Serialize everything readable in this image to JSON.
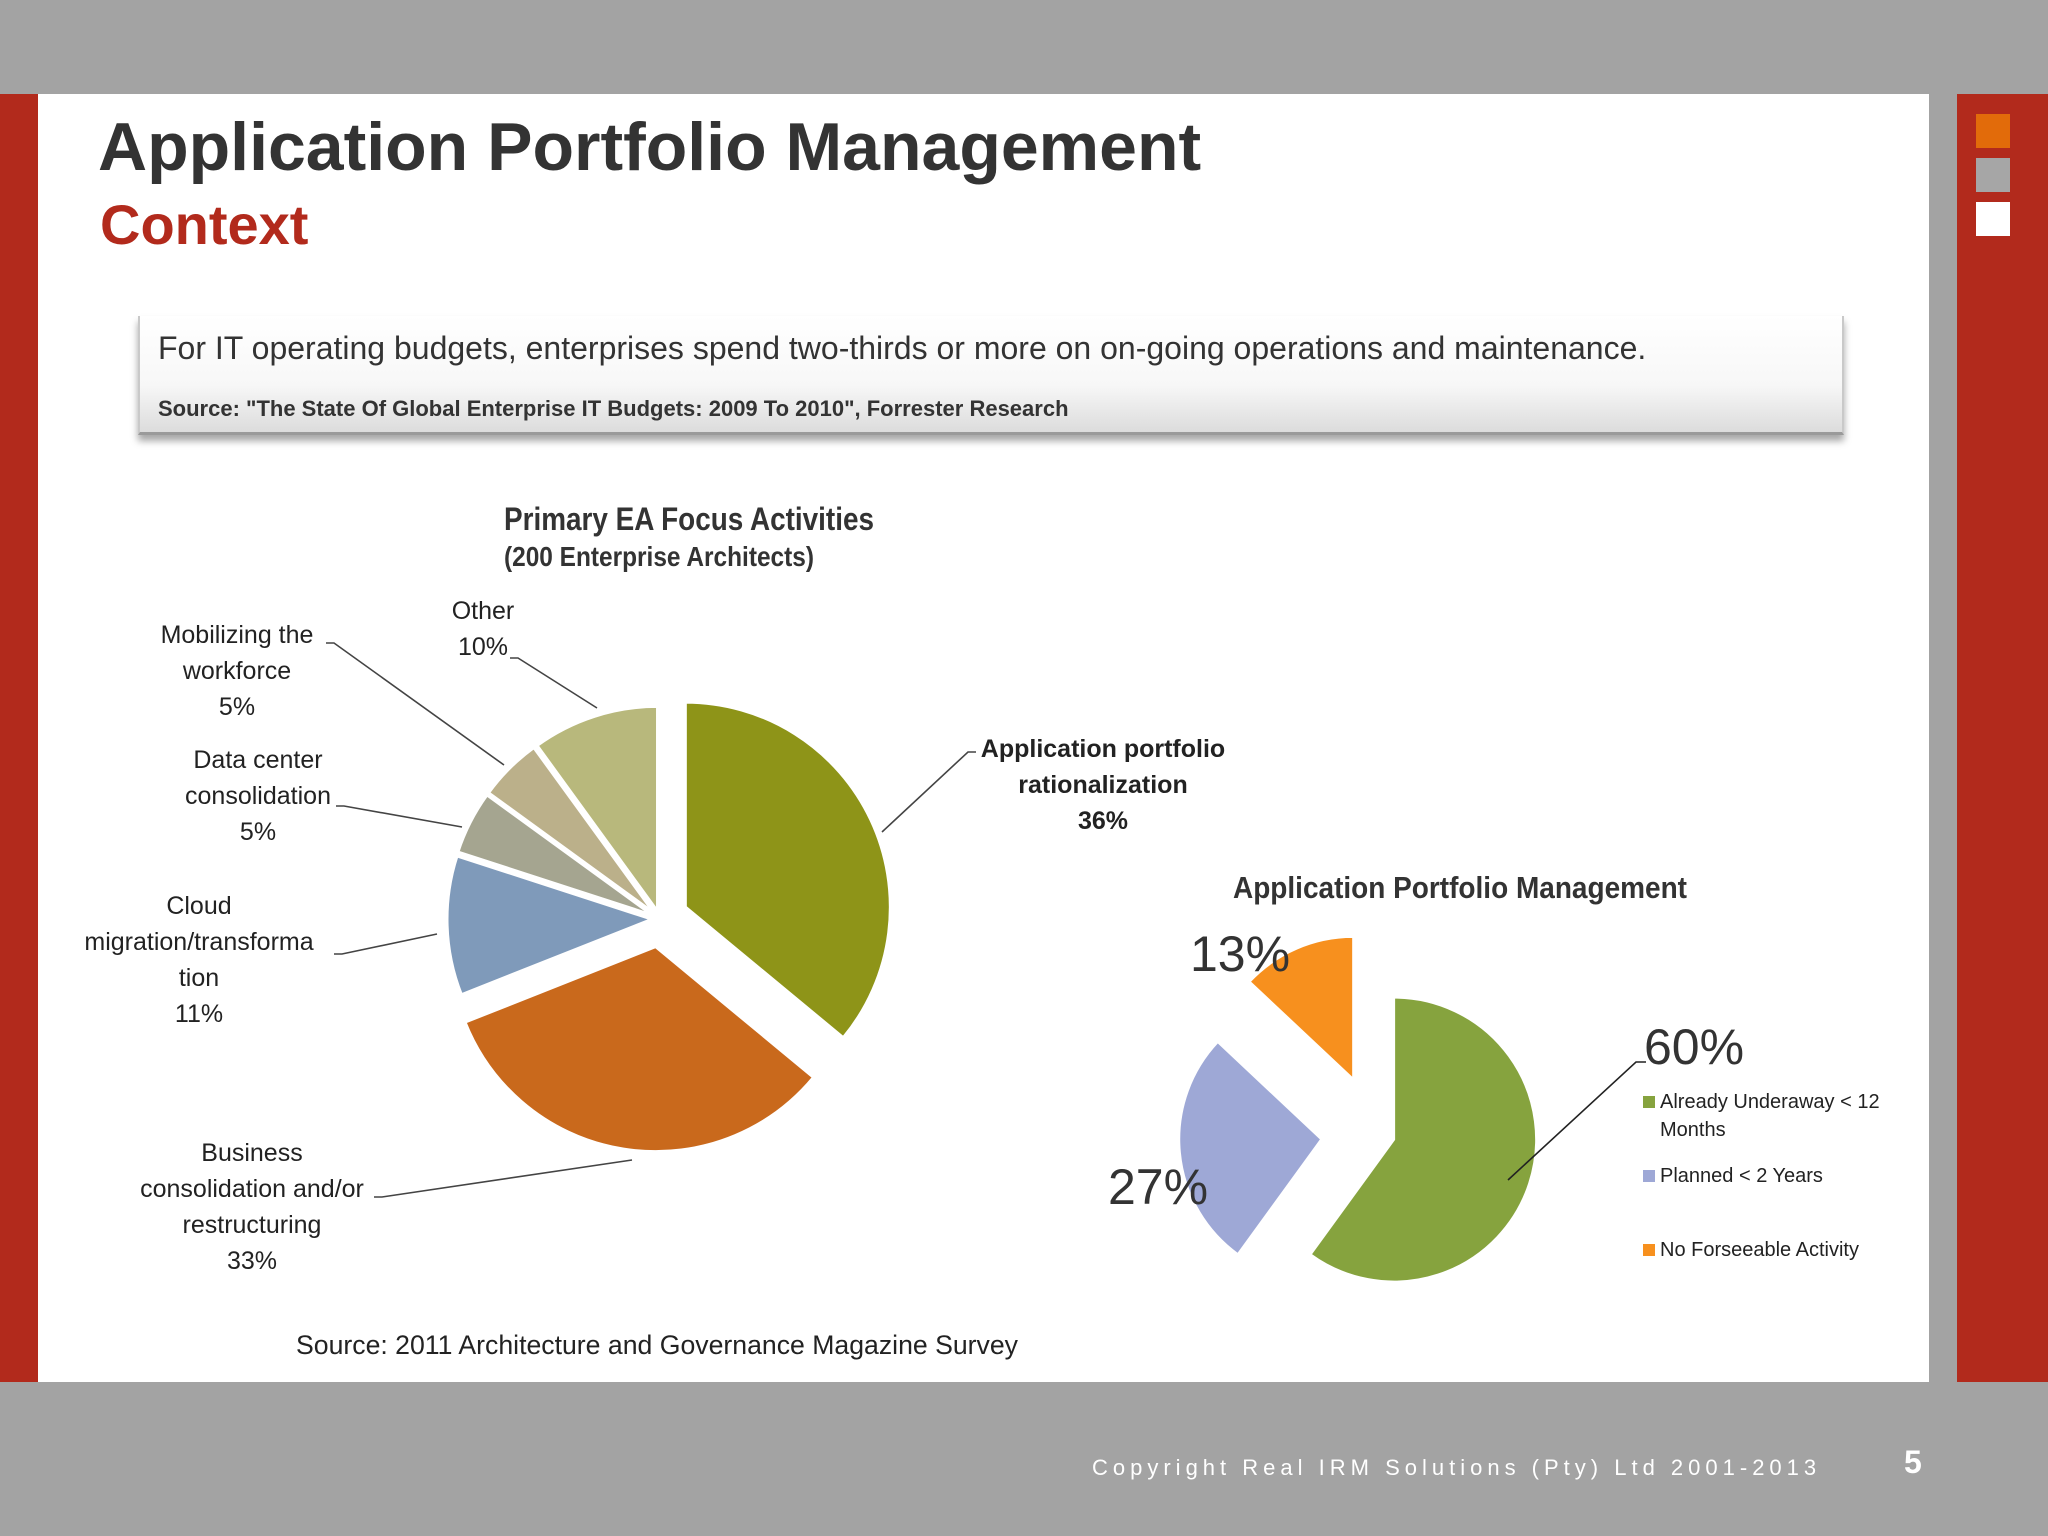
{
  "slide": {
    "title": "Application Portfolio Management",
    "subtitle": "Context",
    "callout_text": "For IT operating budgets, enterprises spend two-thirds or more on on-going operations and maintenance.",
    "callout_source": "Source: \"The State Of Global Enterprise IT Budgets: 2009 To 2010\", Forrester Research",
    "chart_source": "Source: 2011 Architecture and Governance Magazine Survey",
    "copyright": "Copyright Real IRM Solutions (Pty) Ltd 2001-2013",
    "page_number": "5"
  },
  "colors": {
    "brand_red": "#b22a1c",
    "accent_orange": "#e26b0a",
    "gray": "#a6a6a6"
  },
  "chart_data": [
    {
      "type": "pie",
      "title": "Primary EA Focus Activities",
      "subtitle": "(200 Enterprise Architects)",
      "slices": [
        {
          "label": "Application portfolio rationalization",
          "label_lines": [
            "Application portfolio",
            "rationalization"
          ],
          "value": 36,
          "value_label": "36%",
          "color": "#8e9418",
          "bold": true
        },
        {
          "label": "Business consolidation and/or restructuring",
          "label_lines": [
            "Business",
            "consolidation and/or",
            "restructuring"
          ],
          "value": 33,
          "value_label": "33%",
          "color": "#c9691c",
          "bold": false
        },
        {
          "label": "Cloud migration/transformation",
          "label_lines": [
            "Cloud",
            "migration/transforma",
            "tion"
          ],
          "value": 11,
          "value_label": "11%",
          "color": "#7f9aba",
          "bold": false
        },
        {
          "label": "Data center consolidation",
          "label_lines": [
            "Data center",
            "consolidation"
          ],
          "value": 5,
          "value_label": "5%",
          "color": "#a5a590",
          "bold": false
        },
        {
          "label": "Mobilizing the workforce",
          "label_lines": [
            "Mobilizing the",
            "workforce"
          ],
          "value": 5,
          "value_label": "5%",
          "color": "#bbb08a",
          "bold": false
        },
        {
          "label": "Other",
          "label_lines": [
            "Other"
          ],
          "value": 10,
          "value_label": "10%",
          "color": "#b8b87c",
          "bold": false
        }
      ]
    },
    {
      "type": "pie",
      "title": "Application Portfolio Management",
      "legend_position": "right",
      "slices": [
        {
          "label": "Already Underaway < 12 Months",
          "label_lines": [
            "Already Underaway < 12",
            "Months"
          ],
          "value": 60,
          "value_label": "60%",
          "color": "#86a33e"
        },
        {
          "label": "Planned  < 2 Years",
          "label_lines": [
            "Planned  < 2 Years"
          ],
          "value": 27,
          "value_label": "27%",
          "color": "#9ea8d6"
        },
        {
          "label": "No Forseeable Activity",
          "label_lines": [
            "No Forseeable Activity"
          ],
          "value": 13,
          "value_label": "13%",
          "color": "#f7901e"
        }
      ]
    }
  ]
}
